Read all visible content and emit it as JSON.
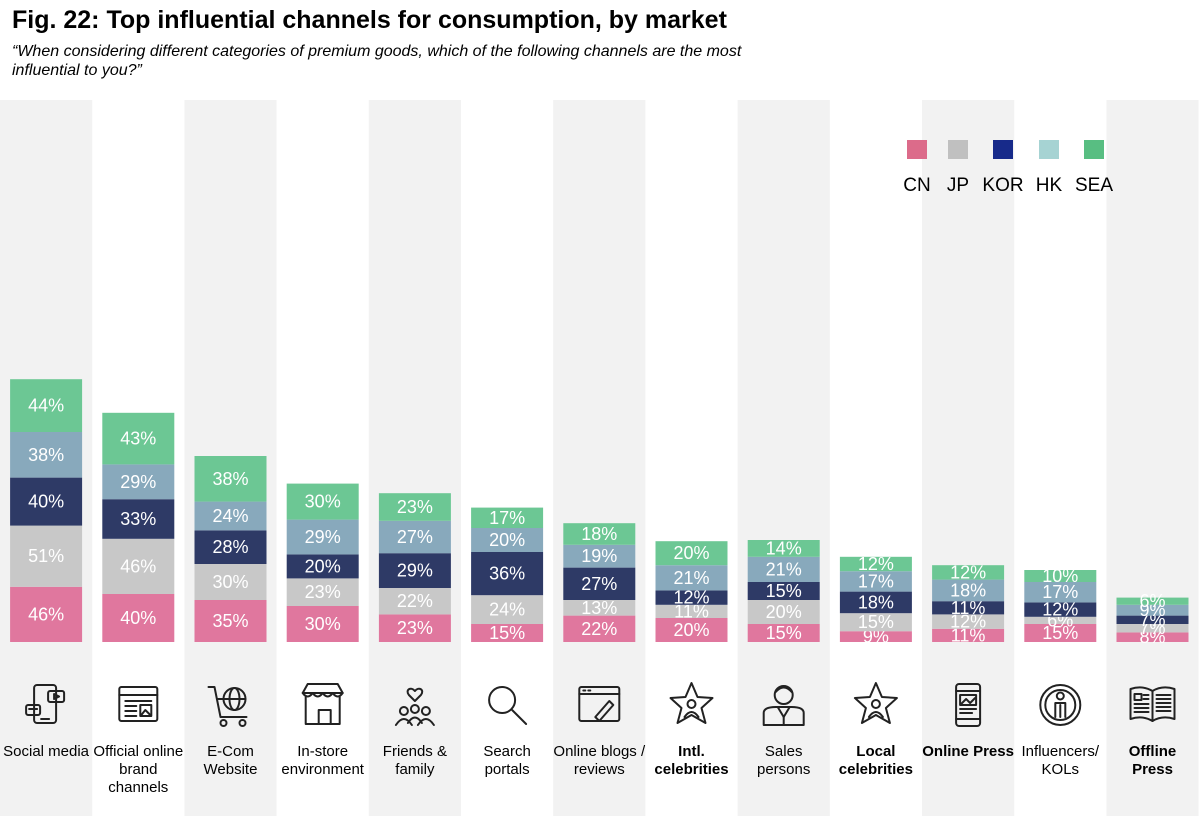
{
  "title": "Fig. 22: Top influential channels for consumption, by market",
  "subtitle": "“When considering different categories of premium goods, which of the following channels are the most influential to you?”",
  "chart_data": {
    "type": "bar",
    "stacked": true,
    "categories": [
      "Social media",
      "Official online brand channels",
      "E-Com Website",
      "In-store environment",
      "Friends & family",
      "Search portals",
      "Online blogs / reviews",
      "Intl. celebrities",
      "Sales persons",
      "Local celebrities",
      "Online Press",
      "Influencers/ KOLs",
      "Offline Press"
    ],
    "category_icons": [
      "smartphone-apps-icon",
      "browser-window-icon",
      "shopping-cart-globe-icon",
      "storefront-icon",
      "group-heart-icon",
      "magnifier-icon",
      "browser-pen-icon",
      "star-person-icon",
      "salesperson-icon",
      "star-person-icon",
      "tablet-news-icon",
      "person-circle-icon",
      "open-book-icon"
    ],
    "bold_categories": [
      7,
      9,
      10,
      12
    ],
    "series": [
      {
        "name": "CN",
        "color": "#e0779e",
        "values": [
          46,
          40,
          35,
          30,
          23,
          15,
          22,
          20,
          15,
          9,
          11,
          15,
          8
        ]
      },
      {
        "name": "JP",
        "color": "#c8c8c8",
        "values": [
          51,
          46,
          30,
          23,
          22,
          24,
          13,
          11,
          20,
          15,
          12,
          6,
          7
        ]
      },
      {
        "name": "KOR",
        "color": "#2e3a66",
        "values": [
          40,
          33,
          28,
          20,
          29,
          36,
          27,
          12,
          15,
          18,
          11,
          12,
          7
        ]
      },
      {
        "name": "HK",
        "color": "#88a9bc",
        "values": [
          38,
          29,
          24,
          29,
          27,
          20,
          19,
          21,
          21,
          17,
          18,
          17,
          9
        ]
      },
      {
        "name": "SEA",
        "color": "#6cc794",
        "values": [
          44,
          43,
          38,
          30,
          23,
          17,
          18,
          20,
          14,
          12,
          12,
          10,
          6
        ]
      }
    ],
    "value_suffix": "%",
    "legend_position": "top-right",
    "legend_swatch_colors": [
      "#dc6b8a",
      "#c0c0c0",
      "#172a8a",
      "#a6d3d3",
      "#58be82"
    ],
    "column_band_color": "#f2f2f2"
  }
}
